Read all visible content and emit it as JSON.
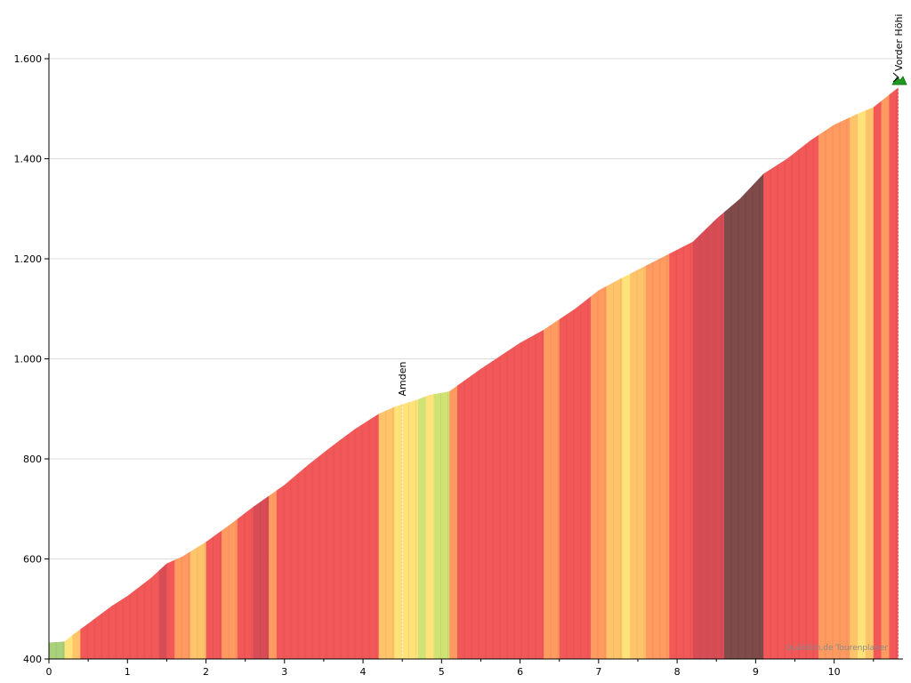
{
  "chart_data": {
    "type": "area",
    "title": "",
    "xlabel": "",
    "ylabel": "",
    "xlim": [
      0,
      10.82
    ],
    "ylim": [
      400,
      1600
    ],
    "x_ticks": [
      {
        "value": 0,
        "label": "0"
      },
      {
        "value": 1,
        "label": "1"
      },
      {
        "value": 2,
        "label": "2"
      },
      {
        "value": 3,
        "label": "3"
      },
      {
        "value": 4,
        "label": "4"
      },
      {
        "value": 5,
        "label": "5"
      },
      {
        "value": 6,
        "label": "6"
      },
      {
        "value": 7,
        "label": "7"
      },
      {
        "value": 8,
        "label": "8"
      },
      {
        "value": 9,
        "label": "9"
      },
      {
        "value": 10,
        "label": "10"
      }
    ],
    "y_ticks": [
      {
        "value": 400,
        "label": "400"
      },
      {
        "value": 600,
        "label": "600"
      },
      {
        "value": 800,
        "label": "800"
      },
      {
        "value": 1000,
        "label": "1.000"
      },
      {
        "value": 1200,
        "label": "1.200"
      },
      {
        "value": 1400,
        "label": "1.400"
      },
      {
        "value": 1600,
        "label": "1.600"
      }
    ],
    "grid": true,
    "series": [
      {
        "x": [
          0,
          0.2,
          0.3,
          0.5,
          0.8,
          1.0,
          1.3,
          1.5,
          1.7,
          2.0,
          2.3,
          2.6,
          3.0,
          3.3,
          3.6,
          3.9,
          4.2,
          4.4,
          4.7,
          4.85,
          5.1,
          5.5,
          6.0,
          6.3,
          6.7,
          7.0,
          7.3,
          7.6,
          7.9,
          8.2,
          8.5,
          8.8,
          9.1,
          9.4,
          9.7,
          10.0,
          10.3,
          10.5,
          10.82
        ],
        "y": [
          433,
          435,
          448,
          471,
          506,
          526,
          562,
          591,
          605,
          634,
          668,
          704,
          748,
          788,
          825,
          860,
          890,
          904,
          919,
          928,
          935,
          980,
          1032,
          1058,
          1100,
          1137,
          1162,
          1186,
          1210,
          1234,
          1280,
          1320,
          1370,
          1400,
          1437,
          1468,
          1490,
          1503,
          1543
        ]
      }
    ],
    "gradient_palette": {
      "flat": "#a9d07b",
      "gentle": "#cfe274",
      "moderate": "#ffe27a",
      "medium": "#ffc46a",
      "steep": "#ff9a60",
      "very_steep": "#f25858",
      "extreme": "#d84d55",
      "max": "#7e4a4a"
    },
    "segments": [
      {
        "x0": 0,
        "x1": 0.2,
        "level": "flat"
      },
      {
        "x0": 0.2,
        "x1": 0.3,
        "level": "moderate"
      },
      {
        "x0": 0.3,
        "x1": 0.4,
        "level": "medium"
      },
      {
        "x0": 0.4,
        "x1": 1.4,
        "level": "very_steep"
      },
      {
        "x0": 1.4,
        "x1": 1.5,
        "level": "extreme"
      },
      {
        "x0": 1.5,
        "x1": 1.6,
        "level": "very_steep"
      },
      {
        "x0": 1.6,
        "x1": 1.8,
        "level": "steep"
      },
      {
        "x0": 1.8,
        "x1": 2.0,
        "level": "medium"
      },
      {
        "x0": 2.0,
        "x1": 2.2,
        "level": "very_steep"
      },
      {
        "x0": 2.2,
        "x1": 2.4,
        "level": "steep"
      },
      {
        "x0": 2.4,
        "x1": 2.6,
        "level": "very_steep"
      },
      {
        "x0": 2.6,
        "x1": 2.8,
        "level": "extreme"
      },
      {
        "x0": 2.8,
        "x1": 2.9,
        "level": "steep"
      },
      {
        "x0": 2.9,
        "x1": 4.2,
        "level": "very_steep"
      },
      {
        "x0": 4.2,
        "x1": 4.4,
        "level": "medium"
      },
      {
        "x0": 4.4,
        "x1": 4.7,
        "level": "moderate"
      },
      {
        "x0": 4.7,
        "x1": 4.8,
        "level": "gentle"
      },
      {
        "x0": 4.8,
        "x1": 4.9,
        "level": "moderate"
      },
      {
        "x0": 4.9,
        "x1": 5.1,
        "level": "gentle"
      },
      {
        "x0": 5.1,
        "x1": 5.2,
        "level": "steep"
      },
      {
        "x0": 5.2,
        "x1": 6.3,
        "level": "very_steep"
      },
      {
        "x0": 6.3,
        "x1": 6.5,
        "level": "steep"
      },
      {
        "x0": 6.5,
        "x1": 6.9,
        "level": "very_steep"
      },
      {
        "x0": 6.9,
        "x1": 7.1,
        "level": "steep"
      },
      {
        "x0": 7.1,
        "x1": 7.3,
        "level": "medium"
      },
      {
        "x0": 7.3,
        "x1": 7.4,
        "level": "moderate"
      },
      {
        "x0": 7.4,
        "x1": 7.6,
        "level": "medium"
      },
      {
        "x0": 7.6,
        "x1": 7.9,
        "level": "steep"
      },
      {
        "x0": 7.9,
        "x1": 8.2,
        "level": "very_steep"
      },
      {
        "x0": 8.2,
        "x1": 8.6,
        "level": "extreme"
      },
      {
        "x0": 8.6,
        "x1": 9.1,
        "level": "max"
      },
      {
        "x0": 9.1,
        "x1": 9.8,
        "level": "very_steep"
      },
      {
        "x0": 9.8,
        "x1": 10.2,
        "level": "steep"
      },
      {
        "x0": 10.2,
        "x1": 10.3,
        "level": "medium"
      },
      {
        "x0": 10.3,
        "x1": 10.4,
        "level": "moderate"
      },
      {
        "x0": 10.4,
        "x1": 10.5,
        "level": "medium"
      },
      {
        "x0": 10.5,
        "x1": 10.6,
        "level": "very_steep"
      },
      {
        "x0": 10.6,
        "x1": 10.7,
        "level": "steep"
      },
      {
        "x0": 10.7,
        "x1": 10.82,
        "level": "very_steep"
      }
    ],
    "annotations": [
      {
        "label": "Amden",
        "x": 4.5,
        "y": 904,
        "type": "place"
      },
      {
        "label": "Vorder Höhi",
        "x": 10.82,
        "y": 1543,
        "type": "summit"
      }
    ],
    "credit": "Quäldich.de Tourenplaner"
  }
}
